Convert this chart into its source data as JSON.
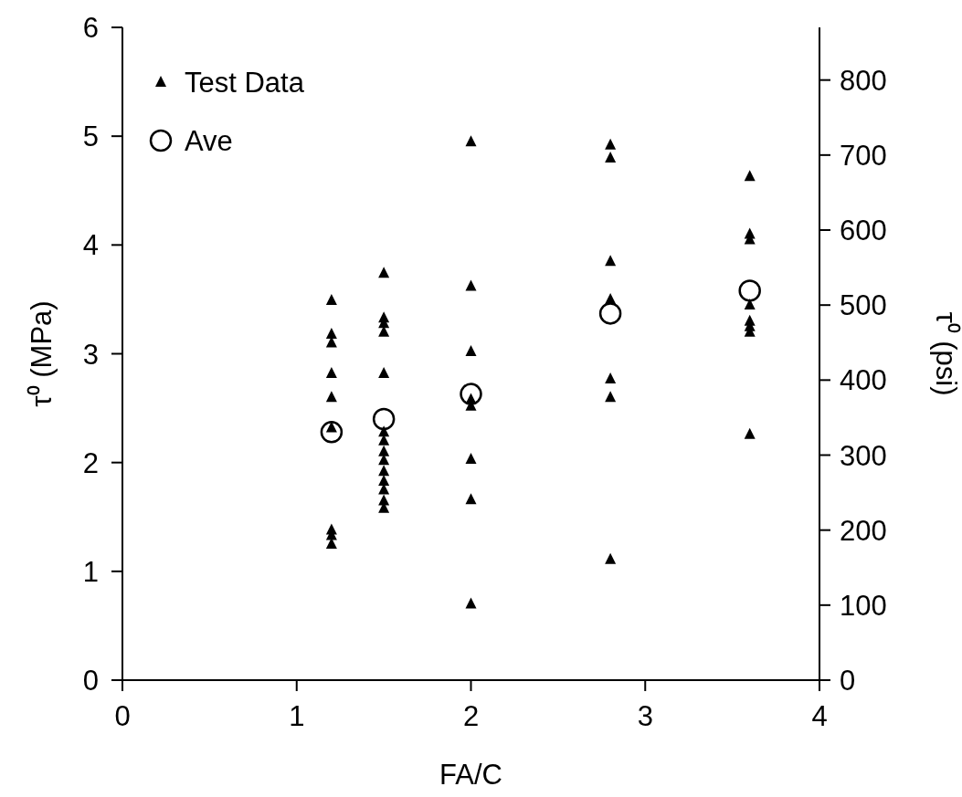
{
  "chart_data": {
    "type": "scatter",
    "xlabel": "FA/C",
    "ylabel": "τ⁰ (MPa)",
    "y2label": "τ⁰ (psi)",
    "xlim": [
      0,
      4
    ],
    "xticks": [
      0,
      1,
      2,
      3,
      4
    ],
    "ylim": [
      0,
      6
    ],
    "yticks": [
      0,
      1,
      2,
      3,
      4,
      5,
      6
    ],
    "y2lim": [
      0,
      870.2
    ],
    "y2ticks": [
      0,
      100,
      200,
      300,
      400,
      500,
      600,
      700,
      800
    ],
    "legend": "top left",
    "grid": false,
    "series": [
      {
        "name": "Test Data",
        "color": "#000000",
        "marker": "triangle",
        "x": [
          1.2,
          1.2,
          1.2,
          1.2,
          1.2,
          1.2,
          1.2,
          1.2,
          1.2,
          1.5,
          1.5,
          1.5,
          1.5,
          1.5,
          1.5,
          1.5,
          1.5,
          1.5,
          1.5,
          1.5,
          1.5,
          1.5,
          1.5,
          2,
          2,
          2,
          2,
          2,
          2,
          2,
          2,
          2.8,
          2.8,
          2.8,
          2.8,
          2.8,
          2.8,
          2.8,
          3.6,
          3.6,
          3.6,
          3.6,
          3.6,
          3.6,
          3.6,
          3.6
        ],
        "values": [
          3.49,
          3.18,
          3.1,
          2.82,
          2.6,
          2.32,
          1.38,
          1.33,
          1.25,
          3.74,
          3.33,
          3.28,
          3.2,
          2.82,
          2.28,
          2.2,
          2.1,
          2.02,
          1.92,
          1.83,
          1.75,
          1.65,
          1.58,
          4.95,
          3.62,
          3.02,
          2.58,
          2.52,
          2.03,
          1.66,
          0.7,
          4.92,
          4.8,
          3.85,
          3.5,
          2.77,
          2.6,
          1.11,
          4.63,
          4.1,
          4.05,
          3.45,
          3.3,
          3.25,
          3.2,
          2.26
        ]
      },
      {
        "name": "Ave",
        "color": "#000000",
        "marker": "circle",
        "x": [
          1.2,
          1.5,
          2,
          2.8,
          3.6
        ],
        "values": [
          2.28,
          2.4,
          2.63,
          3.37,
          3.58
        ]
      }
    ]
  }
}
